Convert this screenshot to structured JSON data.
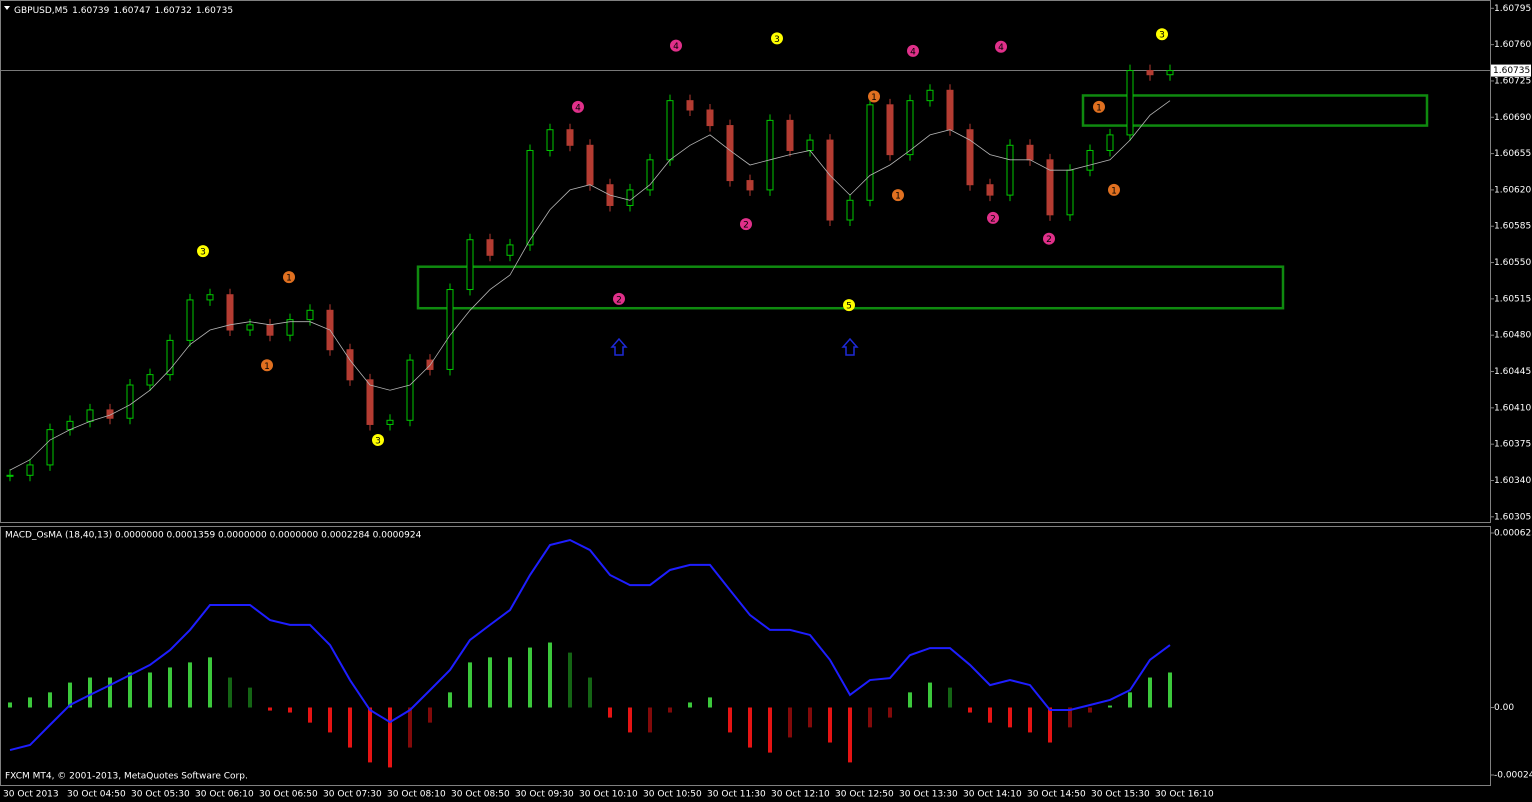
{
  "chart_data": [
    {
      "type": "candlestick",
      "title": "GBPUSD,M5",
      "ohlc": [
        1.60739,
        1.60747,
        1.60732,
        1.60735
      ],
      "close": [
        1.60345,
        1.60355,
        1.60389,
        1.60397,
        1.60408,
        1.604,
        1.60432,
        1.60442,
        1.60475,
        1.60514,
        1.60519,
        1.60485,
        1.6049,
        1.6048,
        1.60495,
        1.60504,
        1.60466,
        1.60437,
        1.60394,
        1.60398,
        1.60456,
        1.60447,
        1.60524,
        1.60572,
        1.60557,
        1.60567,
        1.60658,
        1.60678,
        1.60663,
        1.60625,
        1.60605,
        1.6062,
        1.60649,
        1.60706,
        1.60697,
        1.60682,
        1.60629,
        1.6062,
        1.60687,
        1.60658,
        1.60668,
        1.60591,
        1.6061,
        1.60702,
        1.60654,
        1.60706,
        1.60716,
        1.60678,
        1.60625,
        1.60615,
        1.60663,
        1.60649,
        1.60596,
        1.60639,
        1.60658,
        1.60673,
        1.60735,
        1.60731,
        1.60735
      ],
      "ma": [
        1.6035,
        1.6036,
        1.60379,
        1.60389,
        1.60397,
        1.60403,
        1.60413,
        1.60427,
        1.60447,
        1.60471,
        1.60485,
        1.6049,
        1.60493,
        1.6049,
        1.60493,
        1.60493,
        1.60485,
        1.60456,
        1.60432,
        1.60427,
        1.60432,
        1.60451,
        1.6048,
        1.60504,
        1.60524,
        1.60538,
        1.60572,
        1.60601,
        1.6062,
        1.60625,
        1.60615,
        1.6061,
        1.60625,
        1.60649,
        1.60663,
        1.60673,
        1.60658,
        1.60644,
        1.60649,
        1.60654,
        1.60658,
        1.60634,
        1.60615,
        1.60634,
        1.60644,
        1.60658,
        1.60673,
        1.60678,
        1.60668,
        1.60654,
        1.60649,
        1.60649,
        1.60639,
        1.60639,
        1.60644,
        1.60649,
        1.60668,
        1.60692,
        1.60706
      ],
      "colors": {
        "up": "#00c800",
        "down": "#b43c32",
        "ma": "#b4b4b4",
        "bid": "#c0c0c0"
      },
      "ylim": [
        1.603,
        1.60803
      ],
      "yticks": [
        1.60795,
        {
          "value": 1.6076,
          "label": "1.60760"
        },
        1.60725,
        {
          "value": 1.6069,
          "label": "1.60690"
        },
        1.60655,
        {
          "value": 1.6062,
          "label": "1.60620"
        },
        1.60585,
        {
          "value": 1.6055,
          "label": "1.60550"
        },
        1.60515,
        {
          "value": 1.6048,
          "label": "1.60480"
        },
        1.60445,
        {
          "value": 1.6041,
          "label": "1.60410"
        },
        1.60375,
        {
          "value": 1.6034,
          "label": "1.60340"
        },
        1.60305
      ],
      "bid": 1.60735,
      "zone_color": "#0f8a0f",
      "zones": [
        {
          "top": 1.60711,
          "bottom": 1.60682
        },
        {
          "top": 1.60546,
          "bottom": 1.60506
        }
      ],
      "markers": [
        {
          "label": "3",
          "price": 1.60561,
          "color": "#ffff00"
        },
        {
          "label": "3",
          "price": 1.60379,
          "color": "#ffff00"
        },
        {
          "label": "3",
          "price": 1.60766,
          "color": "#ffff00"
        },
        {
          "label": "5",
          "price": 1.60509,
          "color": "#ffff00"
        },
        {
          "label": "3",
          "price": 1.6077,
          "color": "#ffff00"
        },
        {
          "label": "4",
          "price": 1.60759,
          "color": "#e0308a"
        },
        {
          "label": "4",
          "price": 1.607,
          "color": "#e0308a"
        },
        {
          "label": "4",
          "price": 1.60754,
          "color": "#e0308a"
        },
        {
          "label": "4",
          "price": 1.60758,
          "color": "#e0308a"
        },
        {
          "label": "2",
          "price": 1.60587,
          "color": "#e0308a"
        },
        {
          "label": "2",
          "price": 1.60515,
          "color": "#e0308a"
        },
        {
          "label": "2",
          "price": 1.60593,
          "color": "#e0308a"
        },
        {
          "label": "2",
          "price": 1.60573,
          "color": "#e0308a"
        },
        {
          "label": "1",
          "price": 1.60536,
          "color": "#e07020"
        },
        {
          "label": "1",
          "price": 1.60451,
          "color": "#e07020"
        },
        {
          "label": "1",
          "price": 1.6071,
          "color": "#e07020"
        },
        {
          "label": "1",
          "price": 1.60615,
          "color": "#e07020"
        },
        {
          "label": "1",
          "price": 1.607,
          "color": "#e07020"
        },
        {
          "label": "1",
          "price": 1.6062,
          "color": "#e07020"
        }
      ]
    },
    {
      "type": "macd",
      "title": "MACD_OsMA (18,40,13) 0.0000000 0.0001359 0.0000000 0.0000000 0.0002284 0.0000924",
      "histogram": [
        1.8e-05,
        3.6e-05,
        5.4e-05,
        8.9e-05,
        0.000107,
        0.000107,
        0.000125,
        0.000125,
        0.000143,
        0.000161,
        0.000179,
        0.000107,
        7.1e-05,
        -1.1e-05,
        -1.8e-05,
        -5.4e-05,
        -8.9e-05,
        -0.000143,
        -0.000196,
        -0.000214,
        -0.000143,
        -5.4e-05,
        5.4e-05,
        0.000161,
        0.000179,
        0.000179,
        0.000214,
        0.000232,
        0.000196,
        0.000107,
        -3.6e-05,
        -8.9e-05,
        -8.9e-05,
        -1.8e-05,
        1.8e-05,
        3.6e-05,
        -8.9e-05,
        -0.000143,
        -0.000161,
        -0.000107,
        -7.1e-05,
        -0.000125,
        -0.000196,
        -7.1e-05,
        -3.6e-05,
        5.4e-05,
        8.9e-05,
        7.1e-05,
        -1.8e-05,
        -5.4e-05,
        -7.1e-05,
        -8.9e-05,
        -0.000125,
        -7.1e-05,
        -1.8e-05,
        7e-06,
        5.4e-05,
        0.000107,
        0.000125
      ],
      "line": [
        -0.000152,
        -0.000134,
        -6.2e-05,
        9e-06,
        4.5e-05,
        8e-05,
        0.000116,
        0.000152,
        0.000205,
        0.000277,
        0.000366,
        0.000366,
        0.000366,
        0.000312,
        0.000295,
        0.000295,
        0.000223,
        9.8e-05,
        -9e-06,
        -5.2e-05,
        -9e-06,
        6.2e-05,
        0.000134,
        0.000241,
        0.000295,
        0.000348,
        0.000473,
        0.00058,
        0.000598,
        0.000562,
        0.000473,
        0.000437,
        0.000437,
        0.000491,
        0.000509,
        0.000509,
        0.000419,
        0.00033,
        0.000277,
        0.000277,
        0.000259,
        0.00017,
        4.5e-05,
        9.8e-05,
        0.000105,
        0.000187,
        0.000212,
        0.000212,
        0.000152,
        8e-05,
        9.8e-05,
        8e-05,
        -9e-06,
        -9e-06,
        9e-06,
        2.7e-05,
        6.2e-05,
        0.00017,
        0.000223
      ],
      "colors": {
        "pos_up": "#3cc83c",
        "pos_down": "#146414",
        "neg_down": "#e61414",
        "neg_up": "#820a0a",
        "line": "#1e1eff"
      },
      "ylim": [
        -0.000241,
        0.000623
      ],
      "yticks": [
        0.000623,
        {
          "value": 0,
          "label": "0.00"
        },
        -0.000241
      ]
    }
  ],
  "x_axis": {
    "labels": [
      "30 Oct 2013",
      "30 Oct 04:50",
      "30 Oct 05:30",
      "30 Oct 06:10",
      "30 Oct 06:50",
      "30 Oct 07:30",
      "30 Oct 08:10",
      "30 Oct 08:50",
      "30 Oct 09:30",
      "30 Oct 10:10",
      "30 Oct 10:50",
      "30 Oct 11:30",
      "30 Oct 12:10",
      "30 Oct 12:50",
      "30 Oct 13:30",
      "30 Oct 14:10",
      "30 Oct 14:50",
      "30 Oct 15:30",
      "30 Oct 16:10"
    ]
  },
  "footer": "FXCM MT4, © 2001-2013, MetaQuotes Software Corp."
}
